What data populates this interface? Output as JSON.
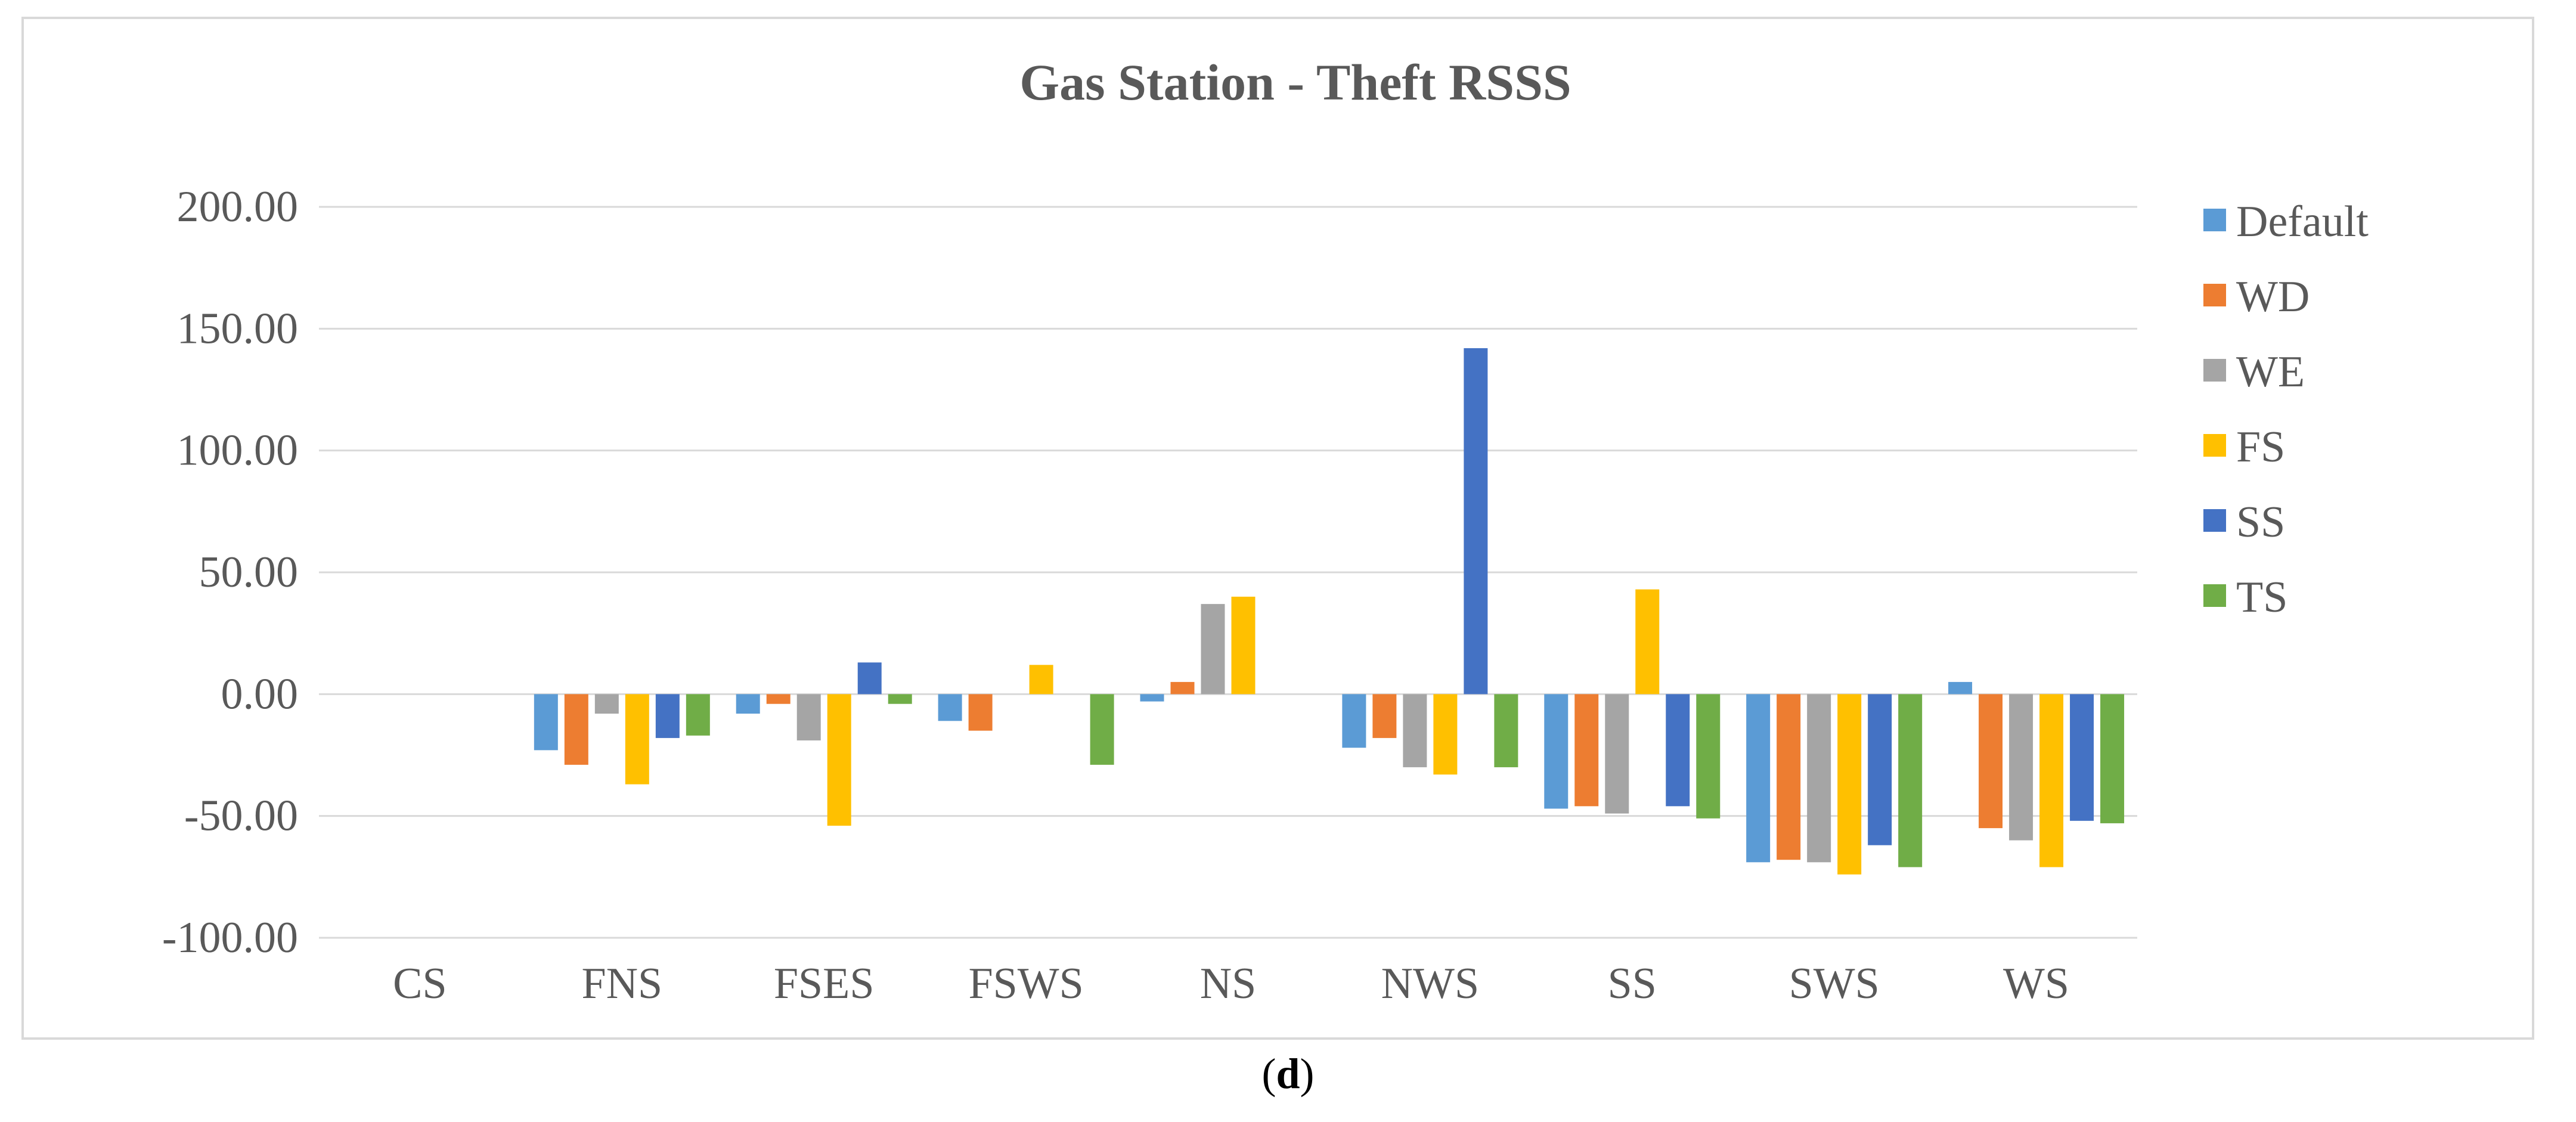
{
  "chart_data": {
    "type": "bar",
    "title": "Gas Station - Theft RSSS",
    "xlabel": "",
    "ylabel": "",
    "ylim": [
      -100,
      200
    ],
    "yticks": [
      200,
      150,
      100,
      50,
      0,
      -50,
      -100
    ],
    "ytick_labels": [
      "200.00",
      "150.00",
      "100.00",
      "50.00",
      "0.00",
      "-50.00",
      "-100.00"
    ],
    "categories": [
      "CS",
      "FNS",
      "FSES",
      "FSWS",
      "NS",
      "NWS",
      "SS",
      "SWS",
      "WS"
    ],
    "grid": true,
    "legend_position": "right",
    "series": [
      {
        "name": "Default",
        "color": "#5B9BD5",
        "values": [
          0,
          -23,
          -8,
          -11,
          -3,
          -22,
          -47,
          -69,
          5
        ]
      },
      {
        "name": "WD",
        "color": "#ED7D31",
        "values": [
          0,
          -29,
          -4,
          -15,
          5,
          -18,
          -46,
          -68,
          -55
        ]
      },
      {
        "name": "WE",
        "color": "#A5A5A5",
        "values": [
          0,
          -8,
          -19,
          0,
          37,
          -30,
          -49,
          -69,
          -60
        ]
      },
      {
        "name": "FS",
        "color": "#FFC000",
        "values": [
          0,
          -37,
          -54,
          12,
          40,
          -33,
          43,
          -74,
          -71
        ]
      },
      {
        "name": "SS",
        "color": "#4472C4",
        "values": [
          0,
          -18,
          13,
          0,
          0,
          142,
          -46,
          -62,
          -52
        ]
      },
      {
        "name": "TS",
        "color": "#70AD47",
        "values": [
          0,
          -17,
          -4,
          -29,
          0,
          -30,
          -51,
          -71,
          -53
        ]
      }
    ]
  },
  "caption": {
    "open": "(",
    "letter": "d",
    "close": ")"
  }
}
